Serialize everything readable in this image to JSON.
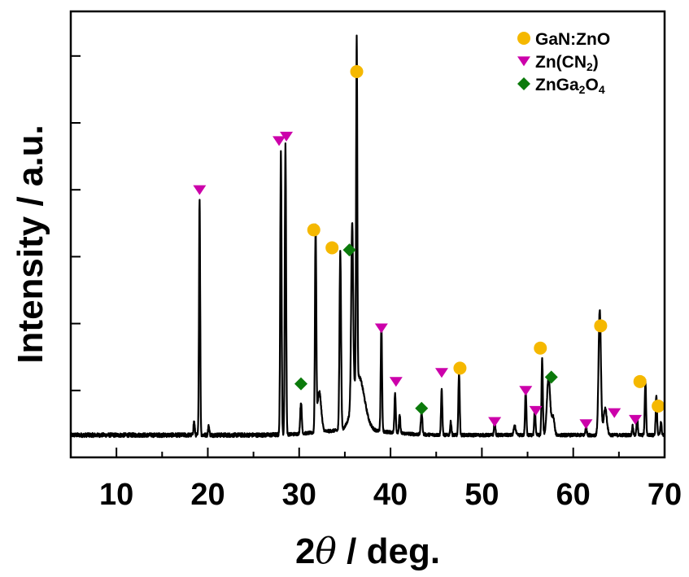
{
  "chart_data": {
    "type": "line",
    "xlabel_prefix": "2",
    "xlabel_symbol": "θ",
    "xlabel_suffix": " / deg.",
    "ylabel": "Intensity / a.u.",
    "xlim": [
      5,
      70
    ],
    "ylim": [
      0,
      100
    ],
    "x_ticks": [
      10,
      20,
      30,
      40,
      50,
      60,
      70
    ],
    "x_tick_labels": [
      "10",
      "20",
      "30",
      "40",
      "50",
      "60",
      "70"
    ],
    "y_ticks_unlabeled": [
      15,
      30,
      45,
      60,
      75,
      90
    ],
    "grid": false,
    "legend_position": "top-right",
    "legend": [
      {
        "marker": "circle",
        "color": "#f5b800",
        "label_parts": [
          {
            "t": "GaN:ZnO"
          }
        ]
      },
      {
        "marker": "triangle-down",
        "color": "#cc00aa",
        "label_parts": [
          {
            "t": "Zn(CN"
          },
          {
            "t": "2",
            "sub": true
          },
          {
            "t": ")"
          }
        ]
      },
      {
        "marker": "diamond",
        "color": "#0b7a0b",
        "label_parts": [
          {
            "t": "ZnGa"
          },
          {
            "t": "2",
            "sub": true
          },
          {
            "t": "O"
          },
          {
            "t": "4",
            "sub": true
          }
        ]
      }
    ],
    "baseline": 5,
    "noise_amplitude": 0.7,
    "series": [
      {
        "color": "#000000",
        "peaks": [
          {
            "x": 18.5,
            "h": 3,
            "w": 0.1
          },
          {
            "x": 19.1,
            "h": 53,
            "w": 0.09
          },
          {
            "x": 20.1,
            "h": 2,
            "w": 0.1
          },
          {
            "x": 28.0,
            "h": 64,
            "w": 0.1
          },
          {
            "x": 28.5,
            "h": 65,
            "w": 0.1
          },
          {
            "x": 30.2,
            "h": 7,
            "w": 0.12
          },
          {
            "x": 31.8,
            "h": 45,
            "w": 0.1
          },
          {
            "x": 32.2,
            "h": 9,
            "w": 0.3
          },
          {
            "x": 34.5,
            "h": 40,
            "w": 0.12
          },
          {
            "x": 35.8,
            "h": 40,
            "w": 0.15
          },
          {
            "x": 36.3,
            "h": 77,
            "w": 0.09
          },
          {
            "x": 36.5,
            "h": 12,
            "w": 0.9
          },
          {
            "x": 39.0,
            "h": 24,
            "w": 0.1
          },
          {
            "x": 40.5,
            "h": 9,
            "w": 0.1
          },
          {
            "x": 41.0,
            "h": 4,
            "w": 0.1
          },
          {
            "x": 43.4,
            "h": 5,
            "w": 0.12
          },
          {
            "x": 45.6,
            "h": 10,
            "w": 0.1
          },
          {
            "x": 46.6,
            "h": 3,
            "w": 0.1
          },
          {
            "x": 47.5,
            "h": 14,
            "w": 0.1
          },
          {
            "x": 51.4,
            "h": 3,
            "w": 0.1
          },
          {
            "x": 53.6,
            "h": 2,
            "w": 0.15
          },
          {
            "x": 54.8,
            "h": 10,
            "w": 0.1
          },
          {
            "x": 55.8,
            "h": 6,
            "w": 0.1
          },
          {
            "x": 56.6,
            "h": 17,
            "w": 0.1
          },
          {
            "x": 57.3,
            "h": 13,
            "w": 0.25
          },
          {
            "x": 57.8,
            "h": 4,
            "w": 0.2
          },
          {
            "x": 61.4,
            "h": 2,
            "w": 0.1
          },
          {
            "x": 62.9,
            "h": 28,
            "w": 0.18
          },
          {
            "x": 63.5,
            "h": 6,
            "w": 0.25
          },
          {
            "x": 66.5,
            "h": 2,
            "w": 0.1
          },
          {
            "x": 67.0,
            "h": 4,
            "w": 0.1
          },
          {
            "x": 67.9,
            "h": 12,
            "w": 0.1
          },
          {
            "x": 69.1,
            "h": 9,
            "w": 0.1
          },
          {
            "x": 69.6,
            "h": 3,
            "w": 0.1
          }
        ]
      }
    ],
    "annotations": [
      {
        "marker": "triangle-down",
        "x": 19.1,
        "y": 60
      },
      {
        "marker": "triangle-down",
        "x": 27.8,
        "y": 71
      },
      {
        "marker": "triangle-down",
        "x": 28.6,
        "y": 72
      },
      {
        "marker": "circle",
        "x": 31.6,
        "y": 51
      },
      {
        "marker": "circle",
        "x": 33.6,
        "y": 47
      },
      {
        "marker": "diamond",
        "x": 35.5,
        "y": 46.5
      },
      {
        "marker": "circle",
        "x": 36.3,
        "y": 86.5
      },
      {
        "marker": "diamond",
        "x": 30.2,
        "y": 16.5
      },
      {
        "marker": "triangle-down",
        "x": 39.0,
        "y": 29
      },
      {
        "marker": "triangle-down",
        "x": 40.6,
        "y": 17
      },
      {
        "marker": "diamond",
        "x": 43.4,
        "y": 11
      },
      {
        "marker": "triangle-down",
        "x": 45.6,
        "y": 19
      },
      {
        "marker": "circle",
        "x": 47.6,
        "y": 20
      },
      {
        "marker": "triangle-down",
        "x": 51.4,
        "y": 8
      },
      {
        "marker": "triangle-down",
        "x": 54.8,
        "y": 15
      },
      {
        "marker": "triangle-down",
        "x": 55.9,
        "y": 10.5
      },
      {
        "marker": "circle",
        "x": 56.4,
        "y": 24.5
      },
      {
        "marker": "diamond",
        "x": 57.6,
        "y": 18
      },
      {
        "marker": "triangle-down",
        "x": 61.4,
        "y": 7.5
      },
      {
        "marker": "circle",
        "x": 63.0,
        "y": 29.5
      },
      {
        "marker": "triangle-down",
        "x": 64.5,
        "y": 10
      },
      {
        "marker": "circle",
        "x": 67.3,
        "y": 17
      },
      {
        "marker": "triangle-down",
        "x": 66.8,
        "y": 8.5
      },
      {
        "marker": "circle",
        "x": 69.3,
        "y": 11.5
      }
    ]
  }
}
